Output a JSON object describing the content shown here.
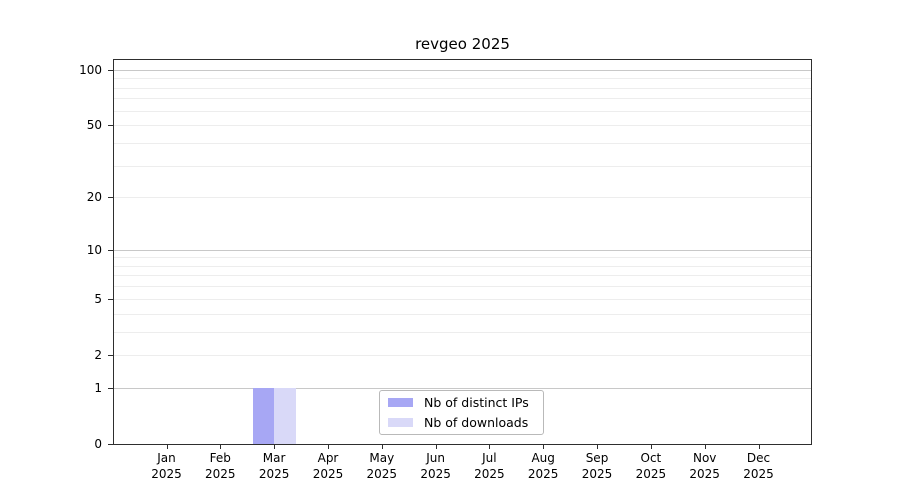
{
  "chart_data": {
    "type": "bar",
    "title": "revgeo 2025",
    "categories": [
      "Jan",
      "Feb",
      "Mar",
      "Apr",
      "May",
      "Jun",
      "Jul",
      "Aug",
      "Sep",
      "Oct",
      "Nov",
      "Dec"
    ],
    "category_year": "2025",
    "series": [
      {
        "name": "Nb of distinct IPs",
        "color": "#a7a7f4",
        "values": [
          0,
          0,
          1,
          0,
          0,
          0,
          0,
          0,
          0,
          0,
          0,
          0
        ]
      },
      {
        "name": "Nb of downloads",
        "color": "#d9d9f8",
        "values": [
          0,
          0,
          1,
          0,
          0,
          0,
          0,
          0,
          0,
          0,
          0,
          0
        ]
      }
    ],
    "y_axis": {
      "scale": "log1p",
      "min": 0,
      "max": 113,
      "labeled_ticks": [
        0,
        1,
        2,
        5,
        10,
        20,
        50,
        100
      ],
      "major_gridlines": [
        1,
        10,
        100
      ],
      "minor_gridlines": [
        2,
        3,
        4,
        5,
        6,
        7,
        8,
        9,
        20,
        30,
        40,
        50,
        60,
        70,
        80,
        90
      ]
    },
    "legend": {
      "position": "lower center",
      "entries": [
        "Nb of distinct IPs",
        "Nb of downloads"
      ]
    },
    "grid": true,
    "colors": {
      "major_grid": "#c8c8c8",
      "minor_grid": "#ededed",
      "spine": "#2e2e2e",
      "text": "#000000",
      "background": "#ffffff"
    }
  }
}
